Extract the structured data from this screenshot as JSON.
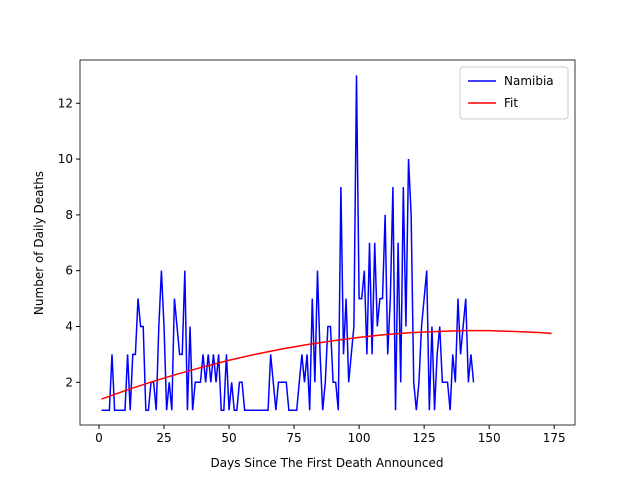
{
  "chart_data": {
    "type": "line",
    "xlabel": "Days Since The First Death Announced",
    "ylabel": "Number of Daily Deaths",
    "xlim": [
      -7.3,
      183
    ],
    "ylim": [
      0.47,
      13.55
    ],
    "xticks": [
      0,
      25,
      50,
      75,
      100,
      125,
      150,
      175
    ],
    "yticks": [
      2,
      4,
      6,
      8,
      10,
      12
    ],
    "legend": "upper right",
    "series": [
      {
        "name": "Namibia",
        "color": "#0000ff",
        "x": [
          1,
          2,
          3,
          4,
          5,
          6,
          7,
          8,
          9,
          10,
          11,
          12,
          13,
          14,
          15,
          16,
          17,
          18,
          19,
          20,
          21,
          22,
          23,
          24,
          25,
          26,
          27,
          28,
          29,
          30,
          31,
          32,
          33,
          34,
          35,
          36,
          37,
          38,
          39,
          40,
          41,
          42,
          43,
          44,
          45,
          46,
          47,
          48,
          49,
          50,
          51,
          52,
          53,
          54,
          55,
          56,
          57,
          58,
          59,
          60,
          61,
          62,
          63,
          64,
          65,
          66,
          67,
          68,
          69,
          70,
          71,
          72,
          73,
          74,
          75,
          76,
          77,
          78,
          79,
          80,
          81,
          82,
          83,
          84,
          85,
          86,
          87,
          88,
          89,
          90,
          91,
          92,
          93,
          94,
          95,
          96,
          97,
          98,
          99,
          100,
          101,
          102,
          103,
          104,
          105,
          106,
          107,
          108,
          109,
          110,
          111,
          112,
          113,
          114,
          115,
          116,
          117,
          118,
          119,
          120,
          121,
          122,
          123,
          124,
          125,
          126,
          127,
          128,
          129,
          130,
          131,
          132,
          133,
          134,
          135,
          136,
          137,
          138,
          139,
          140,
          141,
          142,
          143,
          144
        ],
        "values": [
          1,
          1,
          1,
          1,
          3,
          1,
          1,
          1,
          1,
          1,
          3,
          1,
          3,
          3,
          5,
          4,
          4,
          1,
          1,
          2,
          2,
          1,
          4,
          6,
          4,
          1,
          2,
          1,
          5,
          4,
          3,
          3,
          6,
          1,
          4,
          1,
          2,
          2,
          2,
          3,
          2,
          3,
          2,
          3,
          2,
          3,
          1,
          1,
          3,
          1,
          2,
          1,
          1,
          2,
          2,
          1,
          1,
          1,
          1,
          1,
          1,
          1,
          1,
          1,
          1,
          3,
          2,
          1,
          2,
          2,
          2,
          2,
          1,
          1,
          1,
          1,
          2,
          3,
          2,
          3,
          1,
          5,
          2,
          6,
          3,
          1,
          2,
          4,
          4,
          2,
          2,
          1,
          9,
          3,
          5,
          2,
          3,
          4,
          13,
          5,
          5,
          6,
          3,
          7,
          3,
          7,
          4,
          5,
          5,
          8,
          3,
          5,
          9,
          1,
          7,
          2,
          9,
          4,
          10,
          8,
          2,
          1,
          2,
          4,
          5,
          6,
          1,
          4,
          1,
          3,
          4,
          2,
          2,
          2,
          1,
          3,
          2,
          5,
          3,
          4,
          5,
          2,
          3,
          2
        ]
      },
      {
        "name": "Fit",
        "color": "#ff0000",
        "x": [
          1,
          10,
          20,
          30,
          40,
          50,
          60,
          70,
          80,
          90,
          100,
          110,
          120,
          130,
          140,
          150,
          160,
          170,
          174
        ],
        "values": [
          1.4,
          1.7,
          2.01,
          2.29,
          2.55,
          2.79,
          3.0,
          3.19,
          3.35,
          3.49,
          3.61,
          3.71,
          3.78,
          3.82,
          3.85,
          3.85,
          3.82,
          3.78,
          3.75
        ]
      }
    ]
  }
}
